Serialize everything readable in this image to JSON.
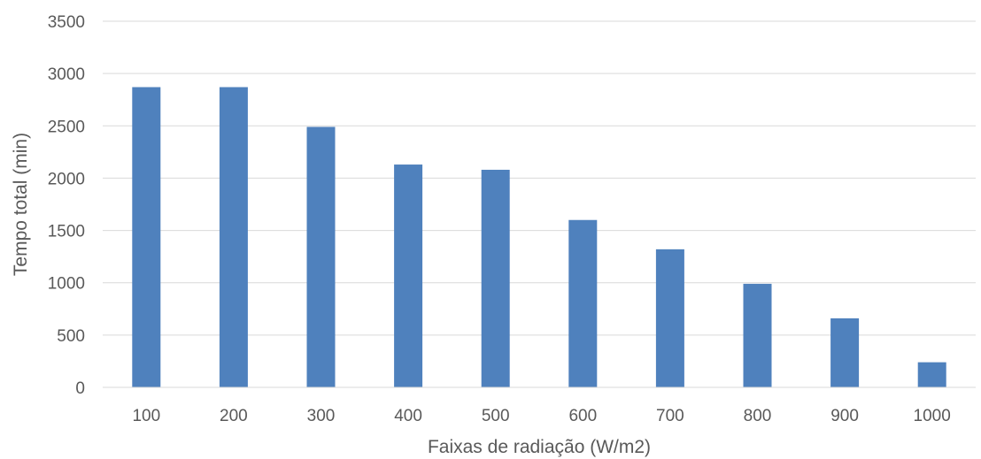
{
  "chart_data": {
    "type": "bar",
    "categories": [
      "100",
      "200",
      "300",
      "400",
      "500",
      "600",
      "700",
      "800",
      "900",
      "1000"
    ],
    "values": [
      2870,
      2870,
      2490,
      2130,
      2080,
      1600,
      1320,
      990,
      660,
      240
    ],
    "title": "",
    "xlabel": "Faixas de radiação (W/m2)",
    "ylabel": "Tempo total (min)",
    "ylim": [
      0,
      3500
    ],
    "yticks": [
      0,
      500,
      1000,
      1500,
      2000,
      2500,
      3000,
      3500
    ],
    "grid": true,
    "legend": "none",
    "bar_color": "#4f81bd"
  }
}
